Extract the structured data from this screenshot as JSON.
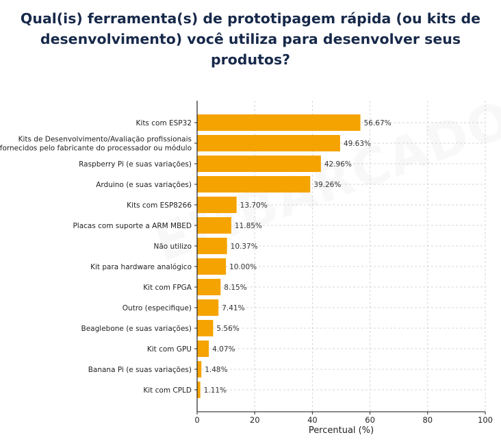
{
  "title": [
    "Qual(is) ferramenta(s) de prototipagem rápida (ou kits de",
    "desenvolvimento) você utiliza para desenvolver seus produtos?"
  ],
  "watermark": "EMBARCADOS",
  "chart_data": {
    "type": "bar",
    "orientation": "horizontal",
    "title": "Qual(is) ferramenta(s) de prototipagem rápida (ou kits de desenvolvimento) você utiliza para desenvolver seus produtos?",
    "xlabel": "Percentual (%)",
    "ylabel": "",
    "xlim": [
      0,
      100
    ],
    "xticks": [
      0,
      20,
      40,
      60,
      80,
      100
    ],
    "grid": true,
    "bar_color": "#F5A300",
    "categories": [
      [
        "Kits com ESP32"
      ],
      [
        "Kits de Desenvolvimento/Avaliação profissionais",
        "fornecidos pelo fabricante do processador ou módulo"
      ],
      [
        "Raspberry Pi (e suas variações)"
      ],
      [
        "Arduino (e suas variações)"
      ],
      [
        "Kits com ESP8266"
      ],
      [
        "Placas com suporte a ARM MBED"
      ],
      [
        "Não utilizo"
      ],
      [
        "Kit para hardware analógico"
      ],
      [
        "Kit com FPGA"
      ],
      [
        "Outro (especifique)"
      ],
      [
        "Beaglebone (e suas variações)"
      ],
      [
        "Kit com GPU"
      ],
      [
        "Banana Pi (e suas variações)"
      ],
      [
        "Kit com CPLD"
      ]
    ],
    "values": [
      56.67,
      49.63,
      42.96,
      39.26,
      13.7,
      11.85,
      10.37,
      10.0,
      8.15,
      7.41,
      5.56,
      4.07,
      1.48,
      1.11
    ],
    "labels": [
      "56.67%",
      "49.63%",
      "42.96%",
      "39.26%",
      "13.70%",
      "11.85%",
      "10.37%",
      "10.00%",
      "8.15%",
      "7.41%",
      "5.56%",
      "4.07%",
      "1.48%",
      "1.11%"
    ]
  }
}
